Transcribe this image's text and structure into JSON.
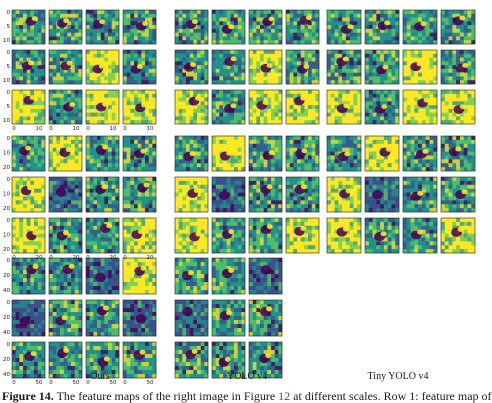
{
  "figure": {
    "columns": [
      {
        "label": "Ours"
      },
      {
        "label": "YOLO v4"
      },
      {
        "label": "Tiny YOLO v4"
      }
    ],
    "caption": {
      "lead": "Figure 14.",
      "text_before_ref": " The feature maps of the right image in Figure ",
      "ref": "12",
      "text_after_ref": " at different scales. Row 1: feature map of"
    },
    "tick_labels": {
      "ours_scale1_x": [
        "0",
        "10",
        "0",
        "10",
        "0",
        "10",
        "0",
        "10"
      ],
      "ours_scale1_y": [
        "0",
        "5",
        "10",
        "0",
        "5",
        "10",
        "0",
        "5",
        "10"
      ],
      "ours_scale2_x": [
        "0",
        "20",
        "0",
        "20",
        "0",
        "20",
        "0",
        "20"
      ],
      "ours_scale2_y": [
        "0",
        "10",
        "20",
        "0",
        "10",
        "20",
        "0",
        "10",
        "20"
      ],
      "ours_scale3_x": [
        "0",
        "50",
        "0",
        "50",
        "0",
        "50",
        "0",
        "50"
      ],
      "ours_scale3_y": [
        "0",
        "20",
        "40",
        "0",
        "20",
        "40",
        "0",
        "20",
        "40"
      ]
    },
    "colormap": [
      "#440154",
      "#3b528b",
      "#21918c",
      "#5ec962",
      "#fde725"
    ]
  }
}
